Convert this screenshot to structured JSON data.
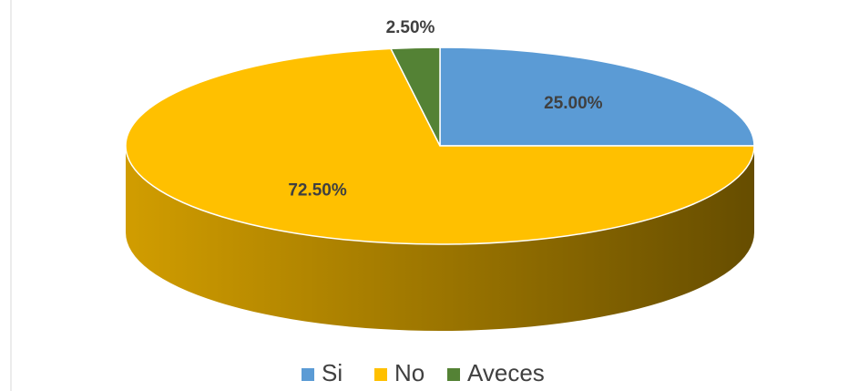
{
  "chart_data": {
    "type": "pie",
    "categories": [
      "Si",
      "No",
      "Aveces"
    ],
    "values": [
      25,
      72.5,
      2.5
    ],
    "value_labels": [
      "25.00%",
      "72.50%",
      "2.50%"
    ],
    "colors": [
      "#5b9bd5",
      "#ffc000",
      "#548235"
    ],
    "legend": "bottom"
  }
}
